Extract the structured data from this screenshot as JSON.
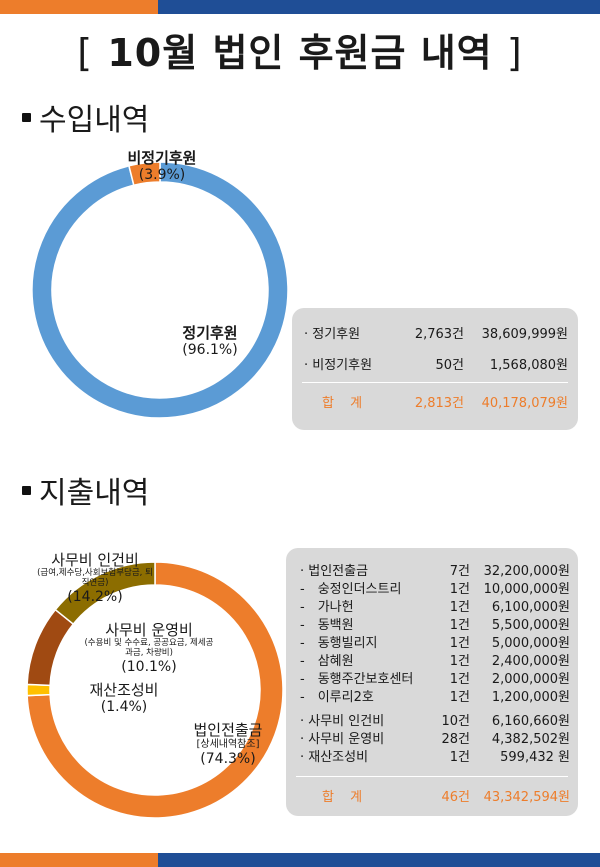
{
  "title": {
    "open": "[",
    "month": "10월",
    "text": "법인 후원금 내역",
    "close": "]"
  },
  "colors": {
    "orange": "#ed7d2b",
    "navy": "#1f4e96",
    "blue": "#5b9bd5",
    "olive": "#8c6d00",
    "brown": "#a04a12",
    "yellow": "#ffc000",
    "gray": "#d9d9d9"
  },
  "income": {
    "heading": "수입내역",
    "chart_data": {
      "type": "pie",
      "categories": [
        "정기후원",
        "비정기후원"
      ],
      "values": [
        96.1,
        3.9
      ],
      "labels": [
        {
          "name": "정기후원",
          "pct": "(96.1%)"
        },
        {
          "name": "비정기후원",
          "pct": "(3.9%)"
        }
      ]
    },
    "rows": [
      {
        "name": "· 정기후원",
        "count": "2,763건",
        "amount": "38,609,999원"
      },
      {
        "name": "· 비정기후원",
        "count": "50건",
        "amount": "1,568,080원"
      }
    ],
    "total": {
      "name": "합 계",
      "count": "2,813건",
      "amount": "40,178,079원"
    }
  },
  "expense": {
    "heading": "지출내역",
    "chart_data": {
      "type": "pie",
      "categories": [
        "법인전출금",
        "재산조성비",
        "사무비 운영비",
        "사무비 인건비"
      ],
      "values": [
        74.3,
        1.4,
        10.1,
        14.2
      ],
      "labels": [
        {
          "name": "법인전출금",
          "sub": "[상세내역참조]",
          "pct": "(74.3%)"
        },
        {
          "name": "재산조성비",
          "pct": "(1.4%)"
        },
        {
          "name": "사무비 운영비",
          "sub": "(수용비 및 수수료, 공공요금, 제세공과금, 차량비)",
          "pct": "(10.1%)"
        },
        {
          "name": "사무비 인건비",
          "sub": "(급여,제수당,사회보험부담금, 퇴직연금)",
          "pct": "(14.2%)"
        }
      ]
    },
    "rows": [
      {
        "name": "· 법인전출금",
        "count": "7건",
        "amount": "32,200,000원"
      },
      {
        "name": "-　숭정인더스트리",
        "count": "1건",
        "amount": "10,000,000원"
      },
      {
        "name": "-　가나헌",
        "count": "1건",
        "amount": "6,100,000원"
      },
      {
        "name": "-　동백원",
        "count": "1건",
        "amount": "5,500,000원"
      },
      {
        "name": "-　동행빌리지",
        "count": "1건",
        "amount": "5,000,000원"
      },
      {
        "name": "-　삼혜원",
        "count": "1건",
        "amount": "2,400,000원"
      },
      {
        "name": "-　동행주간보호센터",
        "count": "1건",
        "amount": "2,000,000원"
      },
      {
        "name": "-　이루리2호",
        "count": "1건",
        "amount": "1,200,000원"
      },
      {
        "name": "· 사무비 인건비",
        "count": "10건",
        "amount": "6,160,660원"
      },
      {
        "name": "· 사무비 운영비",
        "count": "28건",
        "amount": "4,382,502원"
      },
      {
        "name": "· 재산조성비",
        "count": "1건",
        "amount": "599,432 원"
      }
    ],
    "total": {
      "name": "합 계",
      "count": "46건",
      "amount": "43,342,594원"
    }
  }
}
